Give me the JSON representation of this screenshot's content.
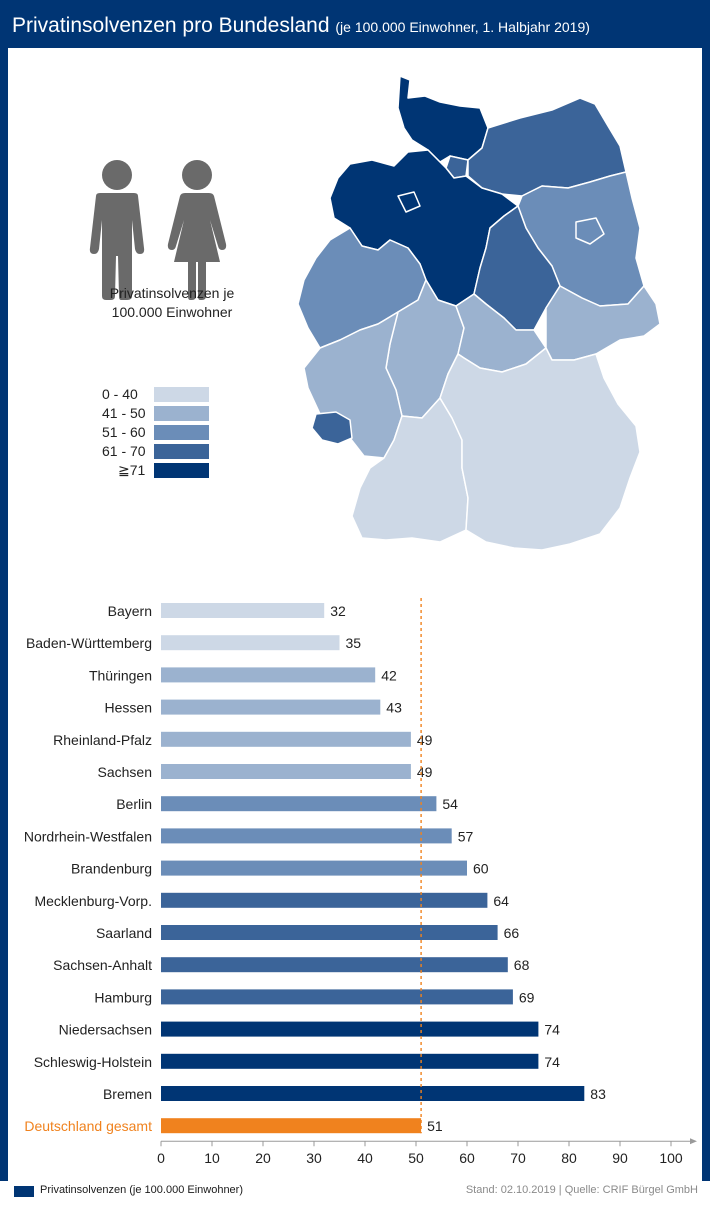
{
  "header": {
    "title": "Privatinsolvenzen pro Bundesland",
    "subtitle": "(je 100.000 Einwohner, 1. Halbjahr 2019)"
  },
  "legend": {
    "title_line1": "Privatinsolvenzen je",
    "title_line2": "100.000 Einwohner",
    "items": [
      {
        "label": "0 - 40",
        "color": "#cdd8e6"
      },
      {
        "label": "41 - 50",
        "color": "#9bb2cf"
      },
      {
        "label": "51 - 60",
        "color": "#6b8db8"
      },
      {
        "label": "61 - 70",
        "color": "#3b6499"
      },
      {
        "label": "≧71",
        "color": "#003574"
      }
    ]
  },
  "icons": {
    "man": "man-icon",
    "woman": "woman-icon",
    "map": "germany-map"
  },
  "chart_data": {
    "type": "bar",
    "orientation": "horizontal",
    "categories": [
      "Bayern",
      "Baden-Württemberg",
      "Thüringen",
      "Hessen",
      "Rheinland-Pfalz",
      "Sachsen",
      "Berlin",
      "Nordrhein-Westfalen",
      "Brandenburg",
      "Mecklenburg-Vorp.",
      "Saarland",
      "Sachsen-Anhalt",
      "Hamburg",
      "Niedersachsen",
      "Schleswig-Holstein",
      "Bremen",
      "Deutschland gesamt"
    ],
    "values": [
      32,
      35,
      42,
      43,
      49,
      49,
      54,
      57,
      60,
      64,
      66,
      68,
      69,
      74,
      74,
      83,
      51
    ],
    "colors": [
      "#cdd8e6",
      "#cdd8e6",
      "#9bb2cf",
      "#9bb2cf",
      "#9bb2cf",
      "#9bb2cf",
      "#6b8db8",
      "#6b8db8",
      "#6b8db8",
      "#3b6499",
      "#3b6499",
      "#3b6499",
      "#3b6499",
      "#003574",
      "#003574",
      "#003574",
      "#f0821e"
    ],
    "highlight_color": "#f0821e",
    "reference_value": 51,
    "xlim": [
      0,
      100
    ],
    "xticks": [
      0,
      10,
      20,
      30,
      40,
      50,
      60,
      70,
      80,
      90,
      100
    ],
    "grid": false
  },
  "footer": {
    "legend_label": "Privatinsolvenzen (je 100.000 Einwohner)",
    "source": "Stand: 02.10.2019 | Quelle: CRIF Bürgel GmbH"
  }
}
